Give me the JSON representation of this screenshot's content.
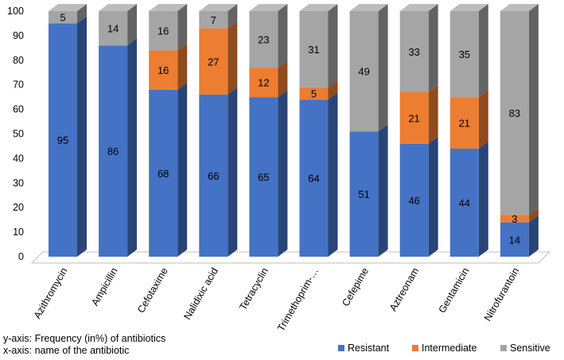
{
  "chart_data": {
    "type": "bar",
    "stacked": true,
    "three_d": true,
    "categories": [
      "Azithromycin",
      "Ampicillin",
      "Cefotaxime",
      "Nalidixic acid",
      "Tetracyclin",
      "Trimethoprim-…",
      "Cefepime",
      "Aztreonam",
      "Gentamicin",
      "Nitrofurantoin"
    ],
    "series": [
      {
        "name": "Resistant",
        "color": "#4472C4",
        "values": [
          95,
          86,
          68,
          66,
          65,
          64,
          51,
          46,
          44,
          14
        ]
      },
      {
        "name": "Intermediate",
        "color": "#ED7D31",
        "values": [
          null,
          null,
          16,
          27,
          12,
          5,
          null,
          21,
          21,
          3
        ]
      },
      {
        "name": "Sensitive",
        "color": "#A5A5A5",
        "values": [
          5,
          14,
          16,
          7,
          23,
          31,
          49,
          33,
          35,
          83
        ]
      }
    ],
    "ylim": [
      0,
      100
    ],
    "yticks": [
      0,
      10,
      20,
      30,
      40,
      50,
      60,
      70,
      80,
      90,
      100
    ],
    "grid": false,
    "legend_position": "bottom-right"
  },
  "notes": {
    "yaxis": "y-axis: Frequency (in%) of antibiotics",
    "xaxis": "x-axis: name of the antibiotic"
  }
}
